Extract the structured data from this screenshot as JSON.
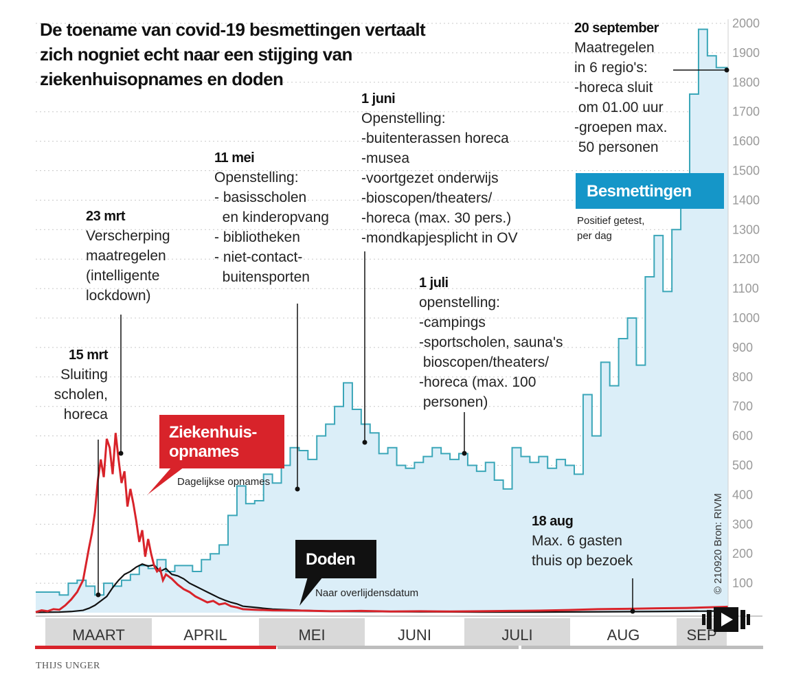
{
  "title_lines": [
    "De toename van covid-19 besmettingen vertaalt",
    "zich nogniet echt naar een stijging van",
    "ziekenhuisopnames en doden"
  ],
  "credit": "THIJS UNGER",
  "source": "© 210920 Bron: RIVM",
  "colors": {
    "besmettingen": "#3aa6b8",
    "besmettingen_fill": "#dbeef8",
    "ziekenhuis": "#d8232a",
    "doden": "#111111",
    "label_blue": "#1596c8",
    "grid": "#c8c8c8",
    "month_band": "#d9d9d9"
  },
  "labels": {
    "besmettingen": {
      "name": "Besmettingen",
      "sub": [
        "Positief getest,",
        "per dag"
      ]
    },
    "ziekenhuis": {
      "name": [
        "Ziekenhuis-",
        "opnames"
      ],
      "sub": "Dagelijkse opnames"
    },
    "doden": {
      "name": "Doden",
      "sub": "Naar overlijdensdatum"
    }
  },
  "annotations": [
    {
      "id": "15mrt",
      "head": "15 mrt",
      "lines": [
        "Sluiting",
        "scholen,",
        "horeca"
      ]
    },
    {
      "id": "23mrt",
      "head": "23 mrt",
      "lines": [
        "Verscherping",
        "maatregelen",
        "(intelligente",
        "lockdown)"
      ]
    },
    {
      "id": "11mei",
      "head": "11 mei",
      "lines": [
        "Openstelling:",
        "- basisscholen",
        "  en kinderopvang",
        "- bibliotheken",
        "- niet-contact-",
        "  buitensporten"
      ]
    },
    {
      "id": "1juni",
      "head": "1 juni",
      "lines": [
        "Openstelling:",
        "-buitenterassen horeca",
        "-musea",
        "-voortgezet onderwijs",
        "-bioscopen/theaters/",
        "-horeca (max. 30 pers.)",
        "-mondkapjesplicht in OV"
      ]
    },
    {
      "id": "1juli",
      "head": "1 juli",
      "lines": [
        "openstelling:",
        "-campings",
        "-sportscholen, sauna's",
        " bioscopen/theaters/",
        "-horeca (max. 100",
        " personen)"
      ]
    },
    {
      "id": "18aug",
      "head": "18 aug",
      "lines": [
        "Max. 6 gasten",
        "thuis op bezoek"
      ]
    },
    {
      "id": "20sep",
      "head": "20 september",
      "lines": [
        "Maatregelen",
        "in 6 regio's:",
        "-horeca sluit",
        " om 01.00 uur",
        "-groepen max.",
        " 50 personen"
      ]
    }
  ],
  "chart_data": {
    "type": "line",
    "x_unit": "day",
    "x_start": "1 maart",
    "y_ticks": [
      "100",
      "200",
      "300",
      "400",
      "500",
      "600",
      "700",
      "800",
      "900",
      "1000",
      "1100",
      "1200",
      "1300",
      "1400",
      "1500",
      "1600",
      "1700",
      "1800",
      "1900",
      "2000"
    ],
    "ylim": [
      0,
      2000
    ],
    "grid": true,
    "months": [
      "MAART",
      "APRIL",
      "MEI",
      "JUNI",
      "JULI",
      "AUG",
      "SEP"
    ],
    "series": [
      {
        "name": "Besmettingen",
        "step": true,
        "points": [
          [
            0,
            70
          ],
          [
            4,
            70
          ],
          [
            8,
            60
          ],
          [
            11,
            100
          ],
          [
            14,
            110
          ],
          [
            17,
            90
          ],
          [
            20,
            60
          ],
          [
            23,
            100
          ],
          [
            26,
            90
          ],
          [
            29,
            110
          ],
          [
            32,
            130
          ],
          [
            35,
            160
          ],
          [
            38,
            150
          ],
          [
            41,
            180
          ],
          [
            44,
            140
          ],
          [
            47,
            160
          ],
          [
            50,
            160
          ],
          [
            53,
            140
          ],
          [
            56,
            180
          ],
          [
            59,
            200
          ],
          [
            62,
            230
          ],
          [
            65,
            330
          ],
          [
            68,
            430
          ],
          [
            71,
            370
          ],
          [
            74,
            380
          ],
          [
            77,
            470
          ],
          [
            80,
            440
          ],
          [
            83,
            500
          ],
          [
            86,
            560
          ],
          [
            89,
            550
          ],
          [
            92,
            520
          ],
          [
            95,
            600
          ],
          [
            98,
            640
          ],
          [
            101,
            700
          ],
          [
            104,
            780
          ],
          [
            107,
            690
          ],
          [
            110,
            640
          ],
          [
            113,
            610
          ],
          [
            116,
            540
          ],
          [
            119,
            560
          ],
          [
            122,
            500
          ],
          [
            125,
            490
          ],
          [
            128,
            510
          ],
          [
            131,
            530
          ],
          [
            134,
            560
          ],
          [
            137,
            540
          ],
          [
            140,
            520
          ],
          [
            143,
            540
          ],
          [
            146,
            500
          ],
          [
            149,
            480
          ],
          [
            152,
            510
          ],
          [
            155,
            450
          ],
          [
            158,
            420
          ],
          [
            161,
            560
          ],
          [
            164,
            530
          ],
          [
            167,
            510
          ],
          [
            170,
            530
          ],
          [
            173,
            490
          ],
          [
            176,
            520
          ],
          [
            179,
            500
          ],
          [
            182,
            470
          ],
          [
            185,
            740
          ],
          [
            188,
            600
          ],
          [
            191,
            850
          ],
          [
            194,
            770
          ],
          [
            197,
            930
          ],
          [
            200,
            1000
          ],
          [
            203,
            840
          ],
          [
            206,
            1140
          ],
          [
            209,
            1280
          ],
          [
            212,
            1090
          ],
          [
            215,
            1300
          ],
          [
            218,
            1480
          ],
          [
            221,
            1760
          ],
          [
            224,
            1980
          ],
          [
            227,
            1890
          ],
          [
            230,
            1850
          ],
          [
            234,
            1850
          ]
        ]
      },
      {
        "name": [
          "Ziekenhuis-",
          "opnames"
        ],
        "points": [
          [
            0,
            2
          ],
          [
            2,
            8
          ],
          [
            4,
            5
          ],
          [
            6,
            12
          ],
          [
            8,
            10
          ],
          [
            10,
            25
          ],
          [
            12,
            45
          ],
          [
            14,
            70
          ],
          [
            16,
            110
          ],
          [
            18,
            220
          ],
          [
            19,
            270
          ],
          [
            20,
            340
          ],
          [
            21,
            450
          ],
          [
            22,
            520
          ],
          [
            23,
            460
          ],
          [
            24,
            590
          ],
          [
            25,
            560
          ],
          [
            26,
            470
          ],
          [
            27,
            610
          ],
          [
            28,
            520
          ],
          [
            29,
            440
          ],
          [
            30,
            480
          ],
          [
            31,
            360
          ],
          [
            32,
            420
          ],
          [
            33,
            370
          ],
          [
            34,
            310
          ],
          [
            35,
            240
          ],
          [
            36,
            280
          ],
          [
            37,
            190
          ],
          [
            38,
            250
          ],
          [
            39,
            200
          ],
          [
            40,
            160
          ],
          [
            41,
            140
          ],
          [
            42,
            150
          ],
          [
            43,
            110
          ],
          [
            44,
            130
          ],
          [
            46,
            115
          ],
          [
            48,
            95
          ],
          [
            50,
            80
          ],
          [
            52,
            70
          ],
          [
            54,
            55
          ],
          [
            56,
            45
          ],
          [
            58,
            35
          ],
          [
            60,
            40
          ],
          [
            62,
            28
          ],
          [
            64,
            32
          ],
          [
            66,
            22
          ],
          [
            68,
            18
          ],
          [
            70,
            12
          ],
          [
            74,
            10
          ],
          [
            80,
            8
          ],
          [
            90,
            7
          ],
          [
            100,
            5
          ],
          [
            110,
            6
          ],
          [
            120,
            4
          ],
          [
            130,
            5
          ],
          [
            140,
            4
          ],
          [
            150,
            5
          ],
          [
            160,
            6
          ],
          [
            170,
            7
          ],
          [
            180,
            9
          ],
          [
            190,
            12
          ],
          [
            200,
            13
          ],
          [
            210,
            15
          ],
          [
            220,
            16
          ],
          [
            230,
            19
          ],
          [
            234,
            20
          ]
        ]
      },
      {
        "name": "Doden",
        "points": [
          [
            0,
            1
          ],
          [
            8,
            2
          ],
          [
            12,
            4
          ],
          [
            16,
            8
          ],
          [
            18,
            15
          ],
          [
            20,
            25
          ],
          [
            22,
            40
          ],
          [
            24,
            55
          ],
          [
            26,
            85
          ],
          [
            28,
            110
          ],
          [
            30,
            130
          ],
          [
            32,
            140
          ],
          [
            34,
            155
          ],
          [
            36,
            165
          ],
          [
            38,
            158
          ],
          [
            40,
            162
          ],
          [
            42,
            140
          ],
          [
            44,
            150
          ],
          [
            46,
            130
          ],
          [
            48,
            125
          ],
          [
            50,
            115
          ],
          [
            52,
            100
          ],
          [
            54,
            90
          ],
          [
            56,
            80
          ],
          [
            58,
            70
          ],
          [
            60,
            60
          ],
          [
            62,
            50
          ],
          [
            64,
            42
          ],
          [
            66,
            35
          ],
          [
            68,
            30
          ],
          [
            70,
            22
          ],
          [
            74,
            18
          ],
          [
            80,
            12
          ],
          [
            90,
            8
          ],
          [
            100,
            5
          ],
          [
            110,
            4
          ],
          [
            130,
            3
          ],
          [
            150,
            2
          ],
          [
            170,
            2
          ],
          [
            190,
            3
          ],
          [
            210,
            4
          ],
          [
            234,
            6
          ]
        ]
      }
    ]
  }
}
